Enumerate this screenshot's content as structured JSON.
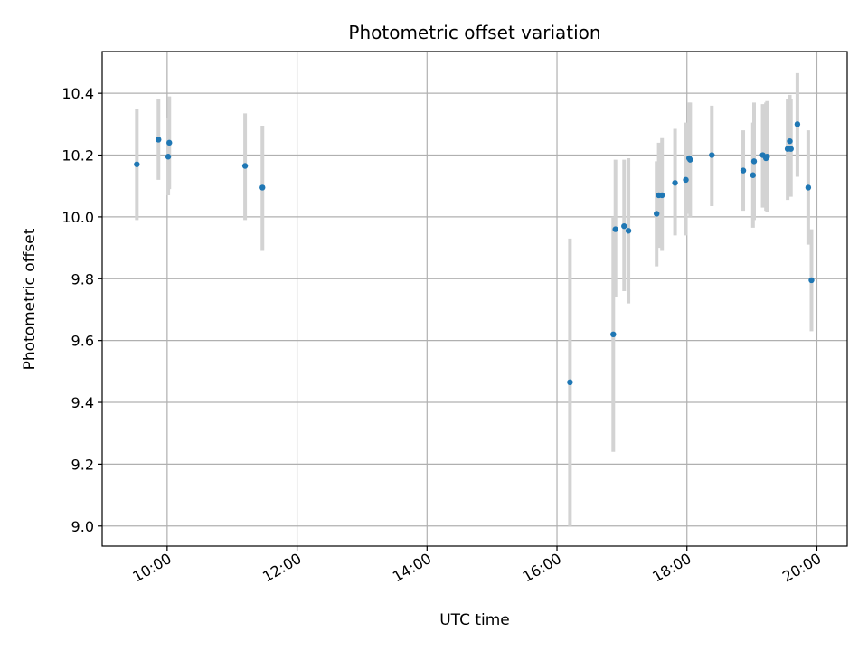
{
  "chart_data": {
    "type": "scatter",
    "title": "Photometric offset variation",
    "xlabel": "UTC time",
    "ylabel": "Photometric offset",
    "x_tick_labels": [
      "10:00",
      "12:00",
      "14:00",
      "16:00",
      "18:00",
      "20:00"
    ],
    "y_tick_labels": [
      "9.0",
      "9.2",
      "9.4",
      "9.6",
      "9.8",
      "10.0",
      "10.2",
      "10.4"
    ],
    "xlim": [
      "09:00",
      "20:28"
    ],
    "ylim": [
      8.935,
      10.535
    ],
    "grid": true,
    "legend": "none",
    "colors": {
      "points": "#1f77b4",
      "error_bars": "#d3d3d3",
      "grid": "#b0b0b0"
    },
    "series": [
      {
        "points": [
          {
            "x": "09:32",
            "y": 10.17,
            "err_low": 9.99,
            "err_high": 10.35
          },
          {
            "x": "09:52",
            "y": 10.25,
            "err_low": 10.12,
            "err_high": 10.38
          },
          {
            "x": "10:01",
            "y": 10.195,
            "err_low": 10.07,
            "err_high": 10.32
          },
          {
            "x": "10:02",
            "y": 10.24,
            "err_low": 10.09,
            "err_high": 10.39
          },
          {
            "x": "11:12",
            "y": 10.165,
            "err_low": 9.99,
            "err_high": 10.335
          },
          {
            "x": "11:28",
            "y": 10.095,
            "err_low": 9.89,
            "err_high": 10.295
          },
          {
            "x": "16:12",
            "y": 9.465,
            "err_low": 9.0,
            "err_high": 9.93
          },
          {
            "x": "16:52",
            "y": 9.62,
            "err_low": 9.24,
            "err_high": 10.0
          },
          {
            "x": "16:54",
            "y": 9.96,
            "err_low": 9.74,
            "err_high": 10.185
          },
          {
            "x": "17:02",
            "y": 9.97,
            "err_low": 9.76,
            "err_high": 10.185
          },
          {
            "x": "17:06",
            "y": 9.955,
            "err_low": 9.72,
            "err_high": 10.19
          },
          {
            "x": "17:32",
            "y": 10.01,
            "err_low": 9.84,
            "err_high": 10.18
          },
          {
            "x": "17:34",
            "y": 10.07,
            "err_low": 9.9,
            "err_high": 10.24
          },
          {
            "x": "17:37",
            "y": 10.07,
            "err_low": 9.89,
            "err_high": 10.255
          },
          {
            "x": "17:49",
            "y": 10.11,
            "err_low": 9.94,
            "err_high": 10.285
          },
          {
            "x": "17:59",
            "y": 10.12,
            "err_low": 9.94,
            "err_high": 10.305
          },
          {
            "x": "18:02",
            "y": 10.19,
            "err_low": 10.01,
            "err_high": 10.37
          },
          {
            "x": "18:03",
            "y": 10.185,
            "err_low": 10.0,
            "err_high": 10.37
          },
          {
            "x": "18:23",
            "y": 10.2,
            "err_low": 10.035,
            "err_high": 10.36
          },
          {
            "x": "18:52",
            "y": 10.15,
            "err_low": 10.02,
            "err_high": 10.28
          },
          {
            "x": "19:01",
            "y": 10.135,
            "err_low": 9.965,
            "err_high": 10.305
          },
          {
            "x": "19:02",
            "y": 10.18,
            "err_low": 9.99,
            "err_high": 10.37
          },
          {
            "x": "19:10",
            "y": 10.2,
            "err_low": 10.03,
            "err_high": 10.365
          },
          {
            "x": "19:13",
            "y": 10.19,
            "err_low": 10.02,
            "err_high": 10.37
          },
          {
            "x": "19:14",
            "y": 10.195,
            "err_low": 10.015,
            "err_high": 10.375
          },
          {
            "x": "19:33",
            "y": 10.22,
            "err_low": 10.055,
            "err_high": 10.38
          },
          {
            "x": "19:35",
            "y": 10.245,
            "err_low": 10.085,
            "err_high": 10.395
          },
          {
            "x": "19:36",
            "y": 10.22,
            "err_low": 10.065,
            "err_high": 10.38
          },
          {
            "x": "19:42",
            "y": 10.3,
            "err_low": 10.13,
            "err_high": 10.465
          },
          {
            "x": "19:52",
            "y": 10.095,
            "err_low": 9.91,
            "err_high": 10.28
          },
          {
            "x": "19:55",
            "y": 9.795,
            "err_low": 9.63,
            "err_high": 9.96
          }
        ]
      }
    ]
  }
}
